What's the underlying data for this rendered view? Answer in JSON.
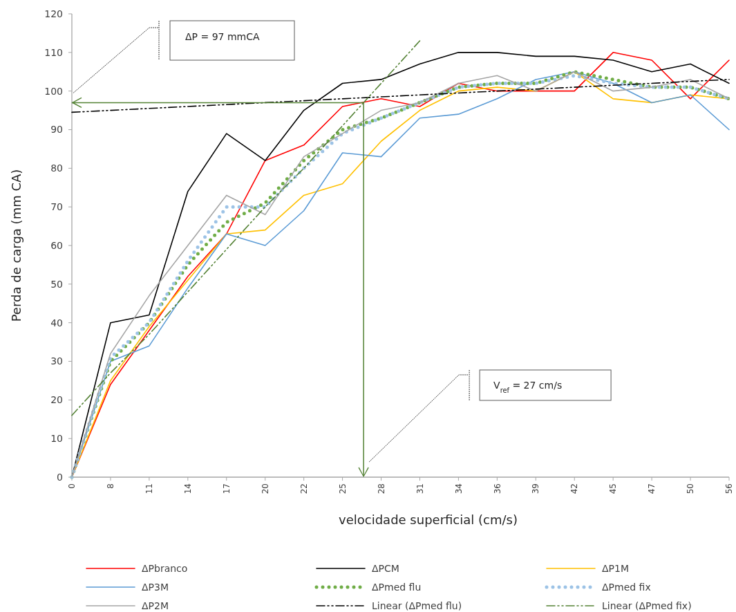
{
  "chart_data": {
    "type": "line",
    "xlabel": "velocidade superficial (cm/s)",
    "ylabel": "Perda de carga (mm CA)",
    "categories": [
      "0",
      "8",
      "11",
      "14",
      "17",
      "20",
      "22",
      "25",
      "28",
      "31",
      "34",
      "36",
      "39",
      "42",
      "45",
      "47",
      "50",
      "56"
    ],
    "ylim": [
      0,
      120
    ],
    "yticks": [
      0,
      10,
      20,
      30,
      40,
      50,
      60,
      70,
      80,
      90,
      100,
      110,
      120
    ],
    "grid": false,
    "legend": "bottom",
    "marker": "none",
    "series": [
      {
        "name": "ΔPbranco",
        "color": "#ff0000",
        "line_style": "solid",
        "values": [
          0,
          24,
          38,
          52,
          63,
          82,
          86,
          96,
          98,
          96,
          102,
          100,
          100,
          100,
          110,
          108,
          98,
          108
        ]
      },
      {
        "name": "ΔPCM",
        "color": "#000000",
        "line_style": "solid",
        "values": [
          0,
          40,
          42,
          74,
          89,
          82,
          95,
          102,
          103,
          107,
          110,
          110,
          109,
          109,
          108,
          105,
          107,
          102
        ]
      },
      {
        "name": "ΔP1M",
        "color": "#ffc000",
        "line_style": "solid",
        "values": [
          0,
          25,
          39,
          51,
          63,
          64,
          73,
          76,
          87,
          95,
          100,
          101,
          100,
          105,
          98,
          97,
          99,
          98
        ]
      },
      {
        "name": "ΔP3M",
        "color": "#5b9bd5",
        "line_style": "solid",
        "values": [
          0,
          30,
          34,
          49,
          63,
          60,
          69,
          84,
          83,
          93,
          94,
          98,
          103,
          105,
          102,
          97,
          99,
          90
        ]
      },
      {
        "name": "ΔPmed flu",
        "color": "#70ad47",
        "line_style": "dotted",
        "values": [
          0,
          30,
          40,
          55,
          66,
          71,
          82,
          90,
          93,
          97,
          101,
          102,
          102,
          105,
          103,
          101,
          101,
          98
        ]
      },
      {
        "name": "ΔPmed fix",
        "color": "#9dc3e6",
        "line_style": "dotted",
        "values": [
          0,
          31,
          40,
          56,
          70,
          70,
          80,
          89,
          93,
          97,
          101,
          102,
          102,
          104,
          102,
          101,
          101,
          98
        ]
      },
      {
        "name": "ΔP2M",
        "color": "#a5a5a5",
        "line_style": "solid",
        "values": [
          0,
          32,
          47,
          60,
          73,
          68,
          83,
          89,
          95,
          97,
          102,
          104,
          100,
          105,
          100,
          101,
          103,
          98
        ]
      },
      {
        "name": "Linear (ΔPmed flu)",
        "color": "#000000",
        "line_style": "dashed",
        "values": [
          94.5,
          95,
          95.5,
          96,
          96.5,
          97,
          97.5,
          98,
          98.5,
          99,
          99.5,
          100,
          100.5,
          101,
          101.5,
          102,
          102.5,
          103
        ]
      },
      {
        "name": "Linear (ΔPmed fix)",
        "color": "#548235",
        "line_style": "dashed",
        "values": [
          16,
          27,
          37,
          48,
          59,
          70,
          80,
          91,
          102,
          113,
          null,
          null,
          null,
          null,
          null,
          null,
          null,
          null
        ]
      }
    ],
    "ref_lines": [
      {
        "axis": "y",
        "value": 97,
        "color": "#548235"
      }
    ],
    "annotations": [
      "ΔP = 97 mmCA",
      "V$_{ref}$ = 27 cm/s"
    ]
  }
}
